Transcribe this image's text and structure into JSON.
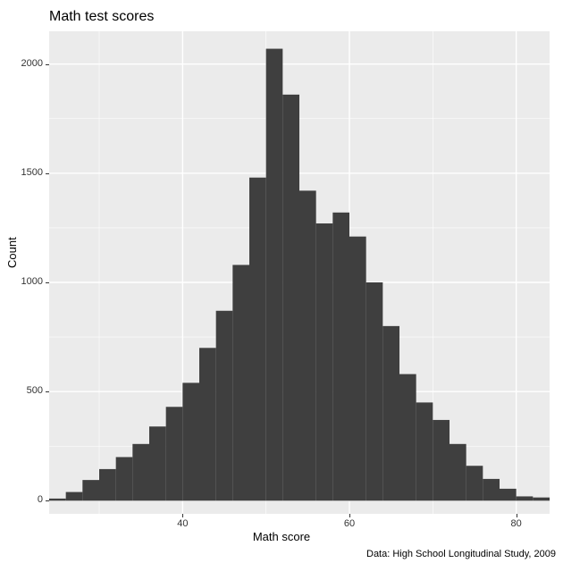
{
  "chart": {
    "type": "histogram",
    "title": "Math test scores",
    "xlabel": "Math score",
    "ylabel": "Count",
    "caption": "Data: High School Longitudinal Study, 2009",
    "panel_bg": "#ebebeb",
    "outer_bg": "#ffffff",
    "grid_color": "#ffffff",
    "bar_fill": "#3f3f3f",
    "title_fontsize": 16,
    "label_fontsize": 13,
    "tick_fontsize": 11,
    "caption_fontsize": 11,
    "xlim": [
      24,
      84
    ],
    "ylim": [
      -60,
      2150
    ],
    "x_ticks": [
      40,
      60,
      80
    ],
    "x_minor": [
      30,
      50,
      70
    ],
    "y_ticks": [
      0,
      500,
      1000,
      1500,
      2000
    ],
    "y_minor": [
      250,
      750,
      1250,
      1750
    ],
    "bin_width": 2,
    "bins": [
      {
        "x": 25,
        "count": 10
      },
      {
        "x": 27,
        "count": 40
      },
      {
        "x": 29,
        "count": 95
      },
      {
        "x": 31,
        "count": 145
      },
      {
        "x": 33,
        "count": 200
      },
      {
        "x": 35,
        "count": 260
      },
      {
        "x": 37,
        "count": 340
      },
      {
        "x": 39,
        "count": 430
      },
      {
        "x": 41,
        "count": 540
      },
      {
        "x": 43,
        "count": 700
      },
      {
        "x": 45,
        "count": 870
      },
      {
        "x": 47,
        "count": 1080
      },
      {
        "x": 49,
        "count": 1480
      },
      {
        "x": 51,
        "count": 2070
      },
      {
        "x": 53,
        "count": 1860
      },
      {
        "x": 55,
        "count": 1420
      },
      {
        "x": 57,
        "count": 1270
      },
      {
        "x": 59,
        "count": 1320
      },
      {
        "x": 61,
        "count": 1210
      },
      {
        "x": 63,
        "count": 1000
      },
      {
        "x": 65,
        "count": 800
      },
      {
        "x": 67,
        "count": 580
      },
      {
        "x": 69,
        "count": 450
      },
      {
        "x": 71,
        "count": 370
      },
      {
        "x": 73,
        "count": 260
      },
      {
        "x": 75,
        "count": 160
      },
      {
        "x": 77,
        "count": 100
      },
      {
        "x": 79,
        "count": 55
      },
      {
        "x": 81,
        "count": 20
      },
      {
        "x": 83,
        "count": 15
      }
    ]
  }
}
